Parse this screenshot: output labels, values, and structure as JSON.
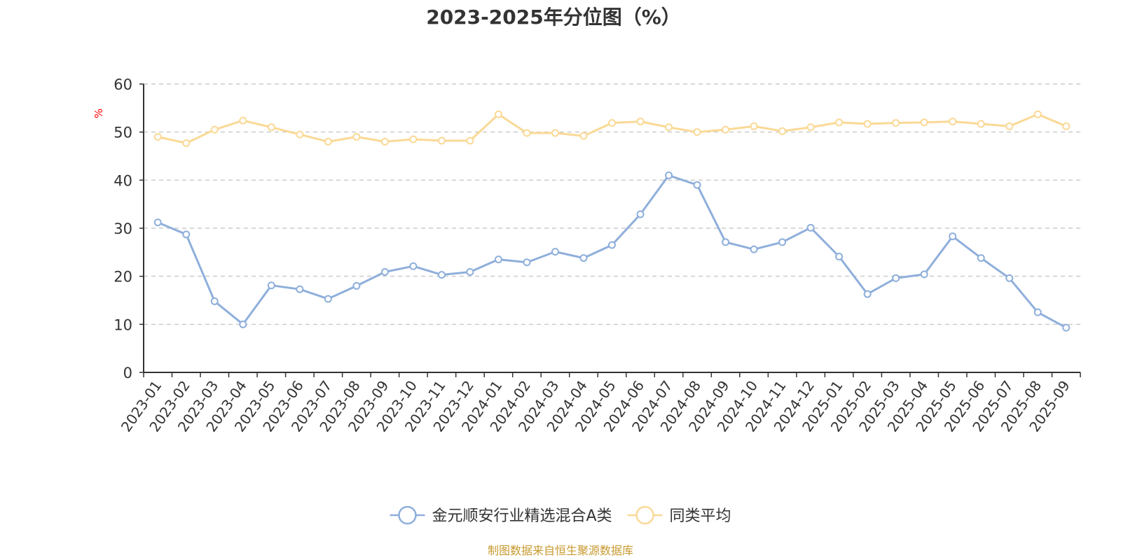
{
  "chart_data": {
    "type": "line",
    "title": "2023-2025年分位图（%）",
    "ylabel": "%",
    "xlabel": "",
    "ylim": [
      0,
      60
    ],
    "yticks": [
      0,
      10,
      20,
      30,
      40,
      50,
      60
    ],
    "grid": true,
    "legend_position": "bottom-center",
    "categories": [
      "2023-01",
      "2023-02",
      "2023-03",
      "2023-04",
      "2023-05",
      "2023-06",
      "2023-07",
      "2023-08",
      "2023-09",
      "2023-10",
      "2023-11",
      "2023-12",
      "2024-01",
      "2024-02",
      "2024-03",
      "2024-04",
      "2024-05",
      "2024-06",
      "2024-07",
      "2024-08",
      "2024-09",
      "2024-10",
      "2024-11",
      "2024-12",
      "2025-01",
      "2025-02",
      "2025-03",
      "2025-04",
      "2025-05",
      "2025-06",
      "2025-07",
      "2025-08",
      "2025-09"
    ],
    "series": [
      {
        "name": "金元顺安行业精选混合A类",
        "color": "#8FAFDB",
        "values": [
          31.2,
          28.7,
          14.8,
          10.0,
          18.1,
          17.3,
          15.3,
          18.0,
          20.9,
          22.1,
          20.3,
          20.9,
          23.5,
          22.9,
          25.1,
          23.8,
          26.5,
          32.9,
          41.0,
          39.0,
          27.1,
          25.6,
          27.1,
          30.1,
          24.1,
          16.3,
          19.6,
          20.4,
          28.3,
          23.8,
          19.6,
          12.5,
          9.3
        ]
      },
      {
        "name": "同类平均",
        "color": "#FAD996",
        "values": [
          49.0,
          47.7,
          50.5,
          52.4,
          51.0,
          49.5,
          48.0,
          49.0,
          48.0,
          48.5,
          48.2,
          48.2,
          53.7,
          49.8,
          49.8,
          49.2,
          51.9,
          52.2,
          51.0,
          50.0,
          50.5,
          51.2,
          50.2,
          51.0,
          52.0,
          51.7,
          51.9,
          52.0,
          52.2,
          51.7,
          51.2,
          53.7,
          51.2
        ]
      }
    ]
  },
  "source": "制图数据来自恒生聚源数据库",
  "colors": {
    "axis": "#333333",
    "grid": "#CCCCCC",
    "ylabel": "#FF0000",
    "source": "#C79A2E",
    "title": "#333333"
  }
}
